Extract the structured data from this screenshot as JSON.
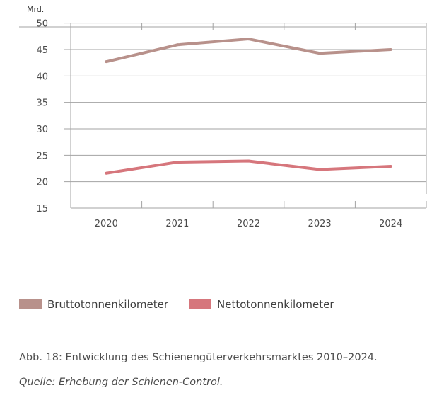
{
  "chart_data": {
    "type": "line",
    "unit_label": "Mrd.",
    "categories": [
      "2020",
      "2021",
      "2022",
      "2023",
      "2024"
    ],
    "ylim": [
      15,
      50
    ],
    "yticks": [
      15,
      20,
      25,
      30,
      35,
      40,
      45,
      50
    ],
    "grid": true,
    "series": [
      {
        "name": "Bruttotonnenkilometer",
        "color": "#b8918b",
        "values": [
          42.7,
          45.9,
          47.0,
          44.3,
          45.0
        ]
      },
      {
        "name": "Nettotonnenkilometer",
        "color": "#d6767c",
        "values": [
          21.6,
          23.7,
          23.9,
          22.3,
          22.9
        ]
      }
    ]
  },
  "legend": {
    "items": [
      {
        "label": "Bruttotonnenkilometer",
        "color": "#b8918b"
      },
      {
        "label": "Nettotonnenkilometer",
        "color": "#d6767c"
      }
    ]
  },
  "caption": {
    "figure": "Abb. 18: Entwicklung des Schienengüterverkehrsmarktes 2010–2024.",
    "source": "Quelle: Erhebung der Schienen-Control."
  }
}
